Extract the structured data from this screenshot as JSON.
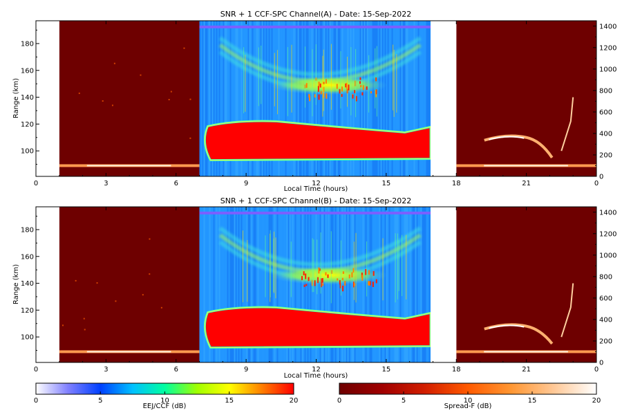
{
  "chart_data": [
    {
      "type": "heatmap",
      "title": "SNR + 1 CCF-SPC Channel(A) - Date: 15-Sep-2022",
      "xlabel": "Local Time (hours)",
      "ylabel": "Range (km)",
      "x_ticks": [
        "0",
        "3",
        "6",
        "9",
        "12",
        "15",
        "18",
        "21",
        "0"
      ],
      "x_tick_hours": [
        0,
        3,
        6,
        9,
        12,
        15,
        18,
        21,
        24
      ],
      "y_ticks": [
        100,
        120,
        140,
        160,
        180
      ],
      "ylim": [
        81,
        197
      ],
      "y2_ticks": [
        0,
        200,
        400,
        600,
        800,
        1000,
        1200,
        1400
      ],
      "y2lim": [
        0,
        1450
      ],
      "gaps_hours": [
        [
          0,
          1
        ],
        [
          16.9,
          18
        ]
      ],
      "segments": [
        {
          "mode": "Spread-F",
          "start_hour": 1,
          "end_hour": 7
        },
        {
          "mode": "EEJ/CCF",
          "start_hour": 7,
          "end_hour": 16.9
        },
        {
          "mode": "Spread-F",
          "start_hour": 18,
          "end_hour": 24
        }
      ],
      "features": {
        "eej_band_km": [
          92,
          121
        ],
        "ccf_arc_center_km": 148,
        "ccf_arc_strength_db": 13,
        "nighttime_trace_km": 89,
        "evening_echo_km": [
          95,
          110
        ],
        "plume_km": [
          100,
          140
        ]
      }
    },
    {
      "type": "heatmap",
      "title": "SNR + 1 CCF-SPC Channel(B) - Date: 15-Sep-2022",
      "xlabel": "Local Time (hours)",
      "ylabel": "Range (km)",
      "x_ticks": [
        "0",
        "3",
        "6",
        "9",
        "12",
        "15",
        "18",
        "21",
        "0"
      ],
      "x_tick_hours": [
        0,
        3,
        6,
        9,
        12,
        15,
        18,
        21,
        24
      ],
      "y_ticks": [
        100,
        120,
        140,
        160,
        180
      ],
      "ylim": [
        81,
        197
      ],
      "y2_ticks": [
        0,
        200,
        400,
        600,
        800,
        1000,
        1200,
        1400
      ],
      "y2lim": [
        0,
        1450
      ],
      "gaps_hours": [
        [
          0,
          1
        ],
        [
          16.9,
          18
        ]
      ],
      "segments": [
        {
          "mode": "Spread-F",
          "start_hour": 1,
          "end_hour": 7
        },
        {
          "mode": "EEJ/CCF",
          "start_hour": 7,
          "end_hour": 16.9
        },
        {
          "mode": "Spread-F",
          "start_hour": 18,
          "end_hour": 24
        }
      ],
      "features": {
        "eej_band_km": [
          91,
          121
        ],
        "ccf_arc_center_km": 145,
        "ccf_arc_strength_db": 11,
        "nighttime_trace_km": 89,
        "evening_echo_km": [
          95,
          108
        ],
        "plume_km": [
          100,
          140
        ]
      }
    }
  ],
  "colorbars": [
    {
      "label": "EEJ/CCF (dB)",
      "ticks": [
        "0",
        "5",
        "10",
        "15",
        "20"
      ],
      "range": [
        0,
        20
      ],
      "colors": [
        "#ffffff",
        "#8080ff",
        "#0040ff",
        "#00c0ff",
        "#00ffa0",
        "#a0ff00",
        "#ffff00",
        "#ff8000",
        "#ff0000"
      ]
    },
    {
      "label": "Spread-F (dB)",
      "ticks": [
        "0",
        "5",
        "10",
        "15",
        "20"
      ],
      "range": [
        0,
        20
      ],
      "colors": [
        "#6e0000",
        "#a00000",
        "#d21e00",
        "#ff5a00",
        "#ff9632",
        "#ffc896",
        "#ffffff"
      ]
    }
  ]
}
